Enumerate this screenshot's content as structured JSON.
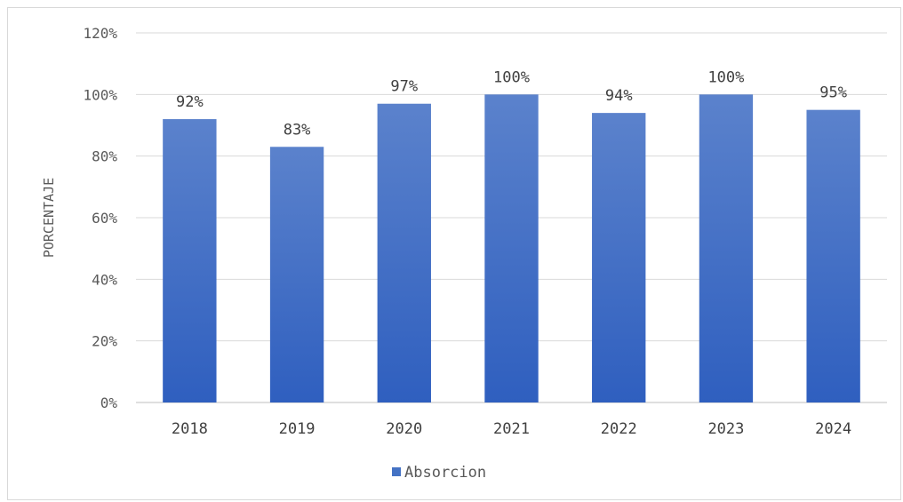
{
  "chart_data": {
    "type": "bar",
    "categories": [
      "2018",
      "2019",
      "2020",
      "2021",
      "2022",
      "2023",
      "2024"
    ],
    "series": [
      {
        "name": "Absorcion",
        "values": [
          92,
          83,
          97,
          100,
          94,
          100,
          95
        ],
        "color": "#4472c4"
      }
    ],
    "data_labels": [
      "92%",
      "83%",
      "97%",
      "100%",
      "94%",
      "100%",
      "95%"
    ],
    "yticks": [
      0,
      20,
      40,
      60,
      80,
      100,
      120
    ],
    "ytick_labels": [
      "0%",
      "20%",
      "40%",
      "60%",
      "80%",
      "100%",
      "120%"
    ],
    "ylim": [
      0,
      120
    ],
    "ylabel": "PORCENTAJE",
    "xlabel": "",
    "grid": true,
    "legend_position": "bottom"
  }
}
